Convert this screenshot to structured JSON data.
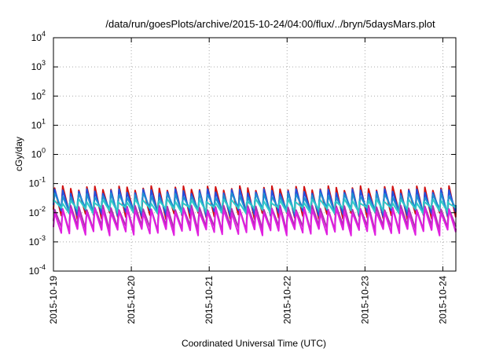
{
  "chart_data": {
    "type": "line",
    "title": "/data/run/goesPlots/archive/2015-10-24/04:00/flux/../bryn/5daysMars.plot",
    "xlabel": "Coordinated Universal Time (UTC)",
    "ylabel": "cGy/day",
    "y_scale": "log",
    "ylim": [
      0.0001,
      10000
    ],
    "xlim_days": [
      "2015-10-19",
      "2015-10-24 04:00"
    ],
    "x_ticks": [
      "2015-10-19",
      "2015-10-20",
      "2015-10-21",
      "2015-10-22",
      "2015-10-23",
      "2015-10-24"
    ],
    "y_ticks": [
      {
        "base": "10",
        "exp": "-4",
        "value": 0.0001
      },
      {
        "base": "10",
        "exp": "-3",
        "value": 0.001
      },
      {
        "base": "10",
        "exp": "-2",
        "value": 0.01
      },
      {
        "base": "10",
        "exp": "-1",
        "value": 0.1
      },
      {
        "base": "10",
        "exp": "0",
        "value": 1
      },
      {
        "base": "10",
        "exp": "1",
        "value": 10
      },
      {
        "base": "10",
        "exp": "2",
        "value": 100
      },
      {
        "base": "10",
        "exp": "3",
        "value": 1000
      },
      {
        "base": "10",
        "exp": "4",
        "value": 10000
      }
    ],
    "grid": true,
    "legend": "none",
    "sawtooth_cycles": 50,
    "series": [
      {
        "color": "#d01010",
        "peak": 0.07,
        "trough": 0.008
      },
      {
        "color": "#2050e0",
        "peak": 0.055,
        "trough": 0.01
      },
      {
        "color": "#2090d0",
        "peak": 0.04,
        "trough": 0.012
      },
      {
        "color": "#30c8c8",
        "peak": 0.025,
        "trough": 0.012
      },
      {
        "color": "#b030b0",
        "peak": 0.015,
        "trough": 0.003
      },
      {
        "color": "#e020e0",
        "peak": 0.012,
        "trough": 0.0022
      }
    ]
  }
}
